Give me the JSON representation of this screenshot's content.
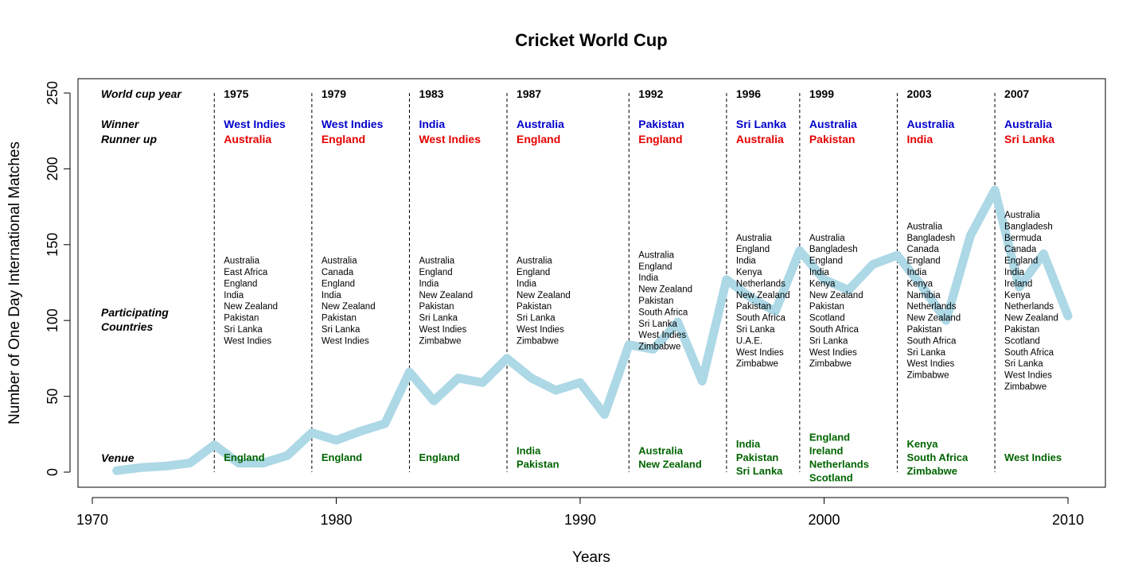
{
  "chart_data": {
    "type": "line",
    "title": "Cricket World Cup",
    "xlabel": "Years",
    "ylabel": "Number of One Day International Matches",
    "xlim": [
      1970,
      2010
    ],
    "ylim": [
      0,
      250
    ],
    "x_ticks": [
      1970,
      1980,
      1990,
      2000,
      2010
    ],
    "y_ticks": [
      0,
      50,
      100,
      150,
      200,
      250
    ],
    "series": [
      {
        "name": "ODI matches per year",
        "color": "#add8e6",
        "x": [
          1971,
          1972,
          1973,
          1974,
          1975,
          1976,
          1977,
          1978,
          1979,
          1980,
          1981,
          1982,
          1983,
          1984,
          1985,
          1986,
          1987,
          1988,
          1989,
          1990,
          1991,
          1992,
          1993,
          1994,
          1995,
          1996,
          1997,
          1998,
          1999,
          2000,
          2001,
          2002,
          2003,
          2004,
          2005,
          2006,
          2007,
          2008,
          2009,
          2010
        ],
        "values": [
          1,
          3,
          4,
          6,
          18,
          6,
          6,
          11,
          26,
          21,
          27,
          32,
          66,
          47,
          62,
          59,
          75,
          62,
          54,
          59,
          38,
          84,
          81,
          99,
          60,
          127,
          115,
          106,
          146,
          127,
          120,
          137,
          143,
          123,
          100,
          156,
          186,
          122,
          144,
          103
        ]
      }
    ],
    "labels": {
      "world_cup_year": "World cup year",
      "winner": "Winner",
      "runner_up": "Runner up",
      "participating_1": "Participating",
      "participating_2": "Countries",
      "venue": "Venue"
    },
    "tournaments": [
      {
        "year": 1975,
        "year_label": "1975",
        "winner": "West Indies",
        "runner_up": "Australia",
        "countries": [
          "Australia",
          "East Africa",
          "England",
          "India",
          "New Zealand",
          "Pakistan",
          "Sri Lanka",
          "West Indies"
        ],
        "venues": [
          "England"
        ]
      },
      {
        "year": 1979,
        "year_label": "1979",
        "winner": "West Indies",
        "runner_up": "England",
        "countries": [
          "Australia",
          "Canada",
          "England",
          "India",
          "New Zealand",
          "Pakistan",
          "Sri Lanka",
          "West Indies"
        ],
        "venues": [
          "England"
        ]
      },
      {
        "year": 1983,
        "year_label": "1983",
        "winner": "India",
        "runner_up": "West Indies",
        "countries": [
          "Australia",
          "England",
          "India",
          "New Zealand",
          "Pakistan",
          "Sri Lanka",
          "West Indies",
          "Zimbabwe"
        ],
        "venues": [
          "England"
        ]
      },
      {
        "year": 1987,
        "year_label": "1987",
        "winner": "Australia",
        "runner_up": "England",
        "countries": [
          "Australia",
          "England",
          "India",
          "New Zealand",
          "Pakistan",
          "Sri Lanka",
          "West Indies",
          "Zimbabwe"
        ],
        "venues": [
          "India",
          "Pakistan"
        ]
      },
      {
        "year": 1992,
        "year_label": "1992",
        "winner": "Pakistan",
        "runner_up": "England",
        "countries": [
          "Australia",
          "England",
          "India",
          "New Zealand",
          "Pakistan",
          "South Africa",
          "Sri Lanka",
          "West Indies",
          "Zimbabwe"
        ],
        "venues": [
          "Australia",
          "New Zealand"
        ]
      },
      {
        "year": 1996,
        "year_label": "1996",
        "winner": "Sri Lanka",
        "runner_up": "Australia",
        "countries": [
          "Australia",
          "England",
          "India",
          "Kenya",
          "Netherlands",
          "New Zealand",
          "Pakistan",
          "South Africa",
          "Sri Lanka",
          "U.A.E.",
          "West Indies",
          "Zimbabwe"
        ],
        "venues": [
          "India",
          "Pakistan",
          "Sri Lanka"
        ]
      },
      {
        "year": 1999,
        "year_label": "1999",
        "winner": "Australia",
        "runner_up": "Pakistan",
        "countries": [
          "Australia",
          "Bangladesh",
          "England",
          "India",
          "Kenya",
          "New Zealand",
          "Pakistan",
          "Scotland",
          "South Africa",
          "Sri Lanka",
          "West Indies",
          "Zimbabwe"
        ],
        "venues": [
          "England",
          "Ireland",
          "Netherlands",
          "Scotland"
        ]
      },
      {
        "year": 2003,
        "year_label": "2003",
        "winner": "Australia",
        "runner_up": "India",
        "countries": [
          "Australia",
          "Bangladesh",
          "Canada",
          "England",
          "India",
          "Kenya",
          "Namibia",
          "Netherlands",
          "New Zealand",
          "Pakistan",
          "South Africa",
          "Sri Lanka",
          "West Indies",
          "Zimbabwe"
        ],
        "venues": [
          "Kenya",
          "South Africa",
          "Zimbabwe"
        ]
      },
      {
        "year": 2007,
        "year_label": "2007",
        "winner": "Australia",
        "runner_up": "Sri Lanka",
        "countries": [
          "Australia",
          "Bangladesh",
          "Bermuda",
          "Canada",
          "England",
          "India",
          "Ireland",
          "Kenya",
          "Netherlands",
          "New Zealand",
          "Pakistan",
          "Scotland",
          "South Africa",
          "Sri Lanka",
          "West Indies",
          "Zimbabwe"
        ],
        "venues": [
          "West Indies"
        ]
      }
    ]
  }
}
